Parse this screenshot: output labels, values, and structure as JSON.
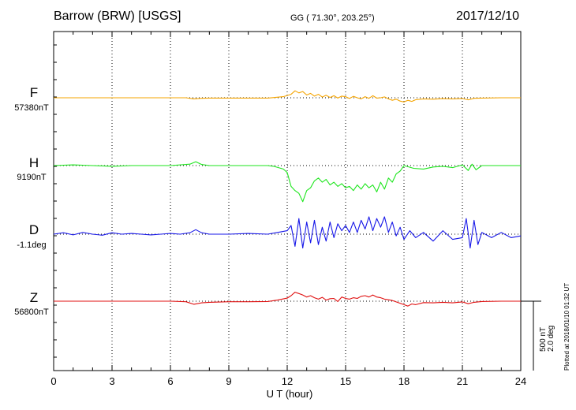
{
  "header": {
    "station": "Barrow (BRW)  [USGS]",
    "coords": "GG ( 71.30°, 203.25°)",
    "date": "2017/12/10"
  },
  "scale": {
    "nt": "500 nT",
    "deg": "2.0 deg",
    "plotted": "Plotted at 2018/01/10 01:32 UT"
  },
  "chart_data": {
    "type": "line",
    "xlabel": "U T (hour)",
    "xlim": [
      0,
      24
    ],
    "xticks": [
      0,
      3,
      6,
      9,
      12,
      15,
      18,
      21,
      24
    ],
    "xtick_labels": [
      "0",
      "3",
      "6",
      "9",
      "12",
      "15",
      "18",
      "21",
      "24"
    ],
    "scale_bar": {
      "nT": 500,
      "deg": 2.0
    },
    "grid": true,
    "series": [
      {
        "name": "F",
        "baseline_label": "57380nT",
        "color": "#f5a400",
        "unit": "nT",
        "x": [
          0,
          1,
          2,
          3,
          4,
          5,
          6,
          6.8,
          7.2,
          7.6,
          8,
          9,
          10,
          11,
          11.8,
          12.2,
          12.4,
          12.6,
          12.8,
          13,
          13.2,
          13.4,
          13.6,
          13.8,
          14,
          14.2,
          14.4,
          14.6,
          14.8,
          15,
          15.2,
          15.4,
          15.6,
          15.8,
          16,
          16.2,
          16.4,
          16.6,
          16.8,
          17,
          17.2,
          17.4,
          17.6,
          17.8,
          18,
          18.2,
          18.4,
          18.6,
          19,
          19.5,
          20,
          20.5,
          21,
          21.3,
          21.6,
          22,
          23,
          24
        ],
        "y": [
          0,
          0,
          0,
          0,
          0,
          0,
          0,
          0,
          -8,
          -4,
          -2,
          -2,
          -2,
          -2,
          8,
          25,
          50,
          35,
          45,
          20,
          32,
          12,
          25,
          5,
          18,
          2,
          15,
          -2,
          12,
          8,
          -5,
          10,
          0,
          -8,
          8,
          -4,
          15,
          -2,
          0,
          6,
          -8,
          -18,
          -10,
          -24,
          -30,
          -18,
          -26,
          -14,
          -8,
          -10,
          -6,
          -8,
          -5,
          -15,
          -4,
          -2,
          0,
          0
        ]
      },
      {
        "name": "H",
        "baseline_label": "9190nT",
        "color": "#1ee61e",
        "unit": "nT",
        "x": [
          0,
          1,
          2,
          3,
          4,
          5,
          6,
          7,
          7.3,
          7.6,
          8,
          9,
          10,
          11,
          11.3,
          11.8,
          12,
          12.2,
          12.4,
          12.6,
          12.8,
          13,
          13.2,
          13.4,
          13.6,
          13.8,
          14,
          14.2,
          14.4,
          14.6,
          14.8,
          15,
          15.2,
          15.4,
          15.6,
          15.8,
          16,
          16.2,
          16.4,
          16.6,
          16.8,
          17,
          17.2,
          17.4,
          17.6,
          17.8,
          18,
          18.5,
          19,
          19.5,
          20,
          20.5,
          21,
          21.3,
          21.5,
          21.7,
          22,
          23,
          24
        ],
        "y": [
          0,
          5,
          0,
          -5,
          0,
          0,
          0,
          10,
          28,
          8,
          0,
          0,
          0,
          0,
          -5,
          -25,
          -50,
          -150,
          -180,
          -200,
          -260,
          -180,
          -160,
          -110,
          -90,
          -120,
          -100,
          -140,
          -120,
          -150,
          -130,
          -160,
          -150,
          -180,
          -140,
          -170,
          -130,
          -160,
          -140,
          -190,
          -120,
          -170,
          -90,
          -120,
          -60,
          -40,
          0,
          -20,
          -25,
          -10,
          -5,
          -15,
          5,
          -35,
          10,
          -30,
          0,
          0,
          0
        ]
      },
      {
        "name": "D",
        "baseline_label": "-1.1deg",
        "color": "#1717e8",
        "unit": "deg",
        "x": [
          0,
          0.5,
          1,
          1.5,
          2,
          2.5,
          3,
          3.5,
          4,
          4.5,
          5,
          5.5,
          6,
          6.5,
          7,
          7.3,
          7.6,
          8,
          9,
          10,
          11,
          11.5,
          12,
          12.2,
          12.4,
          12.6,
          12.8,
          13,
          13.2,
          13.4,
          13.6,
          13.8,
          14,
          14.2,
          14.4,
          14.6,
          14.8,
          15,
          15.2,
          15.4,
          15.6,
          15.8,
          16,
          16.2,
          16.4,
          16.6,
          16.8,
          17,
          17.2,
          17.4,
          17.6,
          17.8,
          18,
          18.3,
          18.6,
          19,
          19.5,
          20,
          20.5,
          21,
          21.2,
          21.4,
          21.6,
          21.8,
          22,
          22.5,
          23,
          23.5,
          24
        ],
        "y": [
          0,
          0.04,
          -0.02,
          0.05,
          0,
          -0.03,
          0.04,
          0,
          0.02,
          0,
          -0.02,
          0,
          0.02,
          0,
          0.04,
          0.13,
          0.04,
          0,
          0,
          0.02,
          0,
          0.05,
          0.1,
          0.25,
          -0.35,
          0.45,
          -0.4,
          0.35,
          -0.25,
          0.4,
          -0.3,
          0.2,
          -0.2,
          0.35,
          -0.1,
          0.3,
          0.1,
          0.25,
          0.05,
          0.35,
          0.05,
          0.4,
          0.15,
          0.5,
          0.1,
          0.45,
          0.2,
          0.5,
          0.05,
          0.35,
          -0.05,
          0.2,
          -0.15,
          0.1,
          -0.1,
          0.05,
          -0.2,
          0.1,
          -0.15,
          -0.1,
          0.45,
          -0.4,
          0.4,
          -0.3,
          0.05,
          -0.1,
          0.05,
          -0.1,
          -0.05
        ]
      },
      {
        "name": "Z",
        "baseline_label": "56800nT",
        "color": "#e01010",
        "unit": "nT",
        "x": [
          0,
          1,
          2,
          3,
          4,
          5,
          6,
          6.8,
          7.2,
          7.6,
          8,
          9,
          10,
          11,
          11.5,
          12,
          12.2,
          12.4,
          12.6,
          12.8,
          13,
          13.2,
          13.4,
          13.6,
          13.8,
          14,
          14.2,
          14.4,
          14.6,
          14.8,
          15,
          15.2,
          15.4,
          15.6,
          15.8,
          16,
          16.2,
          16.4,
          16.6,
          16.8,
          17,
          17.2,
          17.4,
          17.6,
          17.8,
          18,
          18.2,
          18.4,
          18.6,
          19,
          19.5,
          20,
          20.5,
          21,
          21.3,
          21.6,
          22,
          23,
          24
        ],
        "y": [
          0,
          0,
          0,
          0,
          0,
          0,
          0,
          -4,
          -22,
          -12,
          -8,
          -4,
          -4,
          -2,
          8,
          22,
          40,
          65,
          55,
          45,
          30,
          40,
          25,
          15,
          28,
          8,
          18,
          20,
          -2,
          30,
          20,
          15,
          25,
          20,
          35,
          40,
          30,
          45,
          30,
          25,
          15,
          10,
          5,
          -5,
          -15,
          -25,
          -35,
          -20,
          -25,
          -10,
          -12,
          -8,
          -12,
          -5,
          -18,
          -8,
          -2,
          0,
          0
        ]
      }
    ]
  }
}
